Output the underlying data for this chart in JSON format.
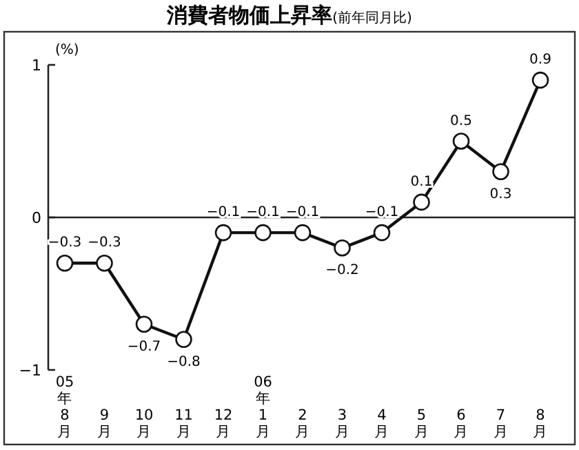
{
  "chart_data": {
    "type": "line",
    "title": "消費者物価上昇率",
    "subtitle": "(前年同月比)",
    "ylabel": "(%)",
    "categories": [
      "05年8月",
      "9月",
      "10月",
      "11月",
      "12月",
      "06年1月",
      "2月",
      "3月",
      "4月",
      "5月",
      "6月",
      "7月",
      "8月"
    ],
    "series": [
      {
        "color": "#111111",
        "values": [
          -0.3,
          -0.3,
          -0.7,
          -0.8,
          -0.1,
          -0.1,
          -0.1,
          -0.2,
          -0.1,
          0.1,
          0.5,
          0.3,
          0.9
        ]
      }
    ],
    "ylim": [
      -1,
      1
    ],
    "yticks": [
      {
        "value": -1,
        "label": "−1"
      },
      0,
      1
    ],
    "ref_lines": [
      {
        "axis": "y",
        "value": 0
      }
    ],
    "marker": "circle",
    "line_style": "solid",
    "data_labels": true
  }
}
